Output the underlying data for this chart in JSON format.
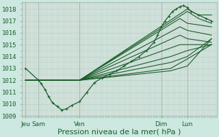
{
  "title": "",
  "xlabel": "Pression niveau de la mer( hPa )",
  "bg_color": "#cce8e0",
  "plot_bg_color": "#cce8e0",
  "grid_major_color": "#b0d4c8",
  "grid_minor_color_v": "#e8c0c0",
  "grid_minor_color_h": "#b0d4c8",
  "line_color": "#1a5c2a",
  "vline_color": "#b0d4c8",
  "font_color": "#1a5c2a",
  "ylim": [
    1009,
    1018.6
  ],
  "xlim": [
    0,
    10.5
  ],
  "yticks": [
    1009,
    1010,
    1011,
    1012,
    1013,
    1014,
    1015,
    1016,
    1017,
    1018
  ],
  "xtick_positions": [
    0.2,
    0.9,
    3.1,
    7.5,
    8.9,
    10.2
  ],
  "xtick_labels": [
    "Jeu",
    "Sam",
    "Ven",
    "Dim",
    "Lun",
    ""
  ],
  "vlines": [
    0.2,
    0.9,
    3.1,
    7.5,
    8.9
  ],
  "tick_fontsize": 6.5,
  "label_fontsize": 8,
  "series": [
    {
      "x": [
        0.2,
        0.9,
        1.05,
        1.25,
        1.45,
        1.65,
        1.9,
        2.15,
        2.4,
        2.7,
        3.1,
        3.5,
        3.9,
        4.3,
        4.7,
        5.1,
        5.5,
        5.9,
        6.3,
        6.7,
        7.1,
        7.3,
        7.5,
        7.7,
        7.9,
        8.1,
        8.3,
        8.5,
        8.7,
        8.9,
        9.1,
        9.5,
        9.9,
        10.2
      ],
      "y": [
        1013.0,
        1012.0,
        1011.7,
        1011.2,
        1010.6,
        1010.1,
        1009.8,
        1009.5,
        1009.6,
        1009.9,
        1010.2,
        1011.0,
        1011.8,
        1012.2,
        1012.5,
        1012.8,
        1013.2,
        1013.6,
        1014.0,
        1014.5,
        1015.2,
        1015.8,
        1016.5,
        1017.0,
        1017.4,
        1017.8,
        1018.0,
        1018.2,
        1018.3,
        1018.1,
        1017.8,
        1017.5,
        1017.2,
        1017.0
      ],
      "marker": true,
      "lw": 0.9
    },
    {
      "x": [
        0.2,
        0.9,
        3.1,
        8.9,
        9.5,
        10.2
      ],
      "y": [
        1012.0,
        1012.0,
        1012.0,
        1018.0,
        1017.5,
        1017.5
      ],
      "marker": false,
      "lw": 0.8
    },
    {
      "x": [
        0.2,
        0.9,
        3.1,
        8.9,
        9.5,
        10.2
      ],
      "y": [
        1012.0,
        1012.0,
        1012.0,
        1017.8,
        1017.2,
        1016.8
      ],
      "marker": false,
      "lw": 0.8
    },
    {
      "x": [
        0.2,
        0.9,
        3.1,
        8.5,
        8.9,
        10.2
      ],
      "y": [
        1012.0,
        1012.0,
        1012.0,
        1017.2,
        1016.8,
        1016.5
      ],
      "marker": false,
      "lw": 0.8
    },
    {
      "x": [
        0.2,
        0.9,
        3.1,
        8.5,
        8.9,
        10.2
      ],
      "y": [
        1012.0,
        1012.0,
        1012.0,
        1016.5,
        1016.2,
        1015.8
      ],
      "marker": false,
      "lw": 0.8
    },
    {
      "x": [
        0.2,
        0.9,
        3.1,
        8.5,
        8.9,
        10.2
      ],
      "y": [
        1012.0,
        1012.0,
        1012.0,
        1015.8,
        1015.5,
        1015.2
      ],
      "marker": false,
      "lw": 0.8
    },
    {
      "x": [
        0.2,
        0.9,
        3.1,
        8.5,
        8.9,
        10.2
      ],
      "y": [
        1012.0,
        1012.0,
        1012.0,
        1015.0,
        1015.0,
        1015.0
      ],
      "marker": false,
      "lw": 0.8
    },
    {
      "x": [
        0.2,
        0.9,
        3.1,
        8.0,
        8.9,
        10.2
      ],
      "y": [
        1012.0,
        1012.0,
        1012.0,
        1014.0,
        1014.5,
        1015.0
      ],
      "marker": false,
      "lw": 0.8
    },
    {
      "x": [
        0.2,
        0.9,
        3.1,
        8.0,
        8.9,
        10.2
      ],
      "y": [
        1012.0,
        1012.0,
        1012.0,
        1013.5,
        1014.0,
        1015.5
      ],
      "marker": false,
      "lw": 0.8
    },
    {
      "x": [
        0.2,
        0.9,
        3.1,
        8.0,
        8.9,
        10.2
      ],
      "y": [
        1012.0,
        1012.0,
        1012.0,
        1013.0,
        1013.8,
        1015.0
      ],
      "marker": false,
      "lw": 0.8
    },
    {
      "x": [
        0.2,
        0.9,
        3.1,
        8.0,
        8.9,
        10.2
      ],
      "y": [
        1012.0,
        1012.0,
        1012.0,
        1012.8,
        1013.2,
        1015.5
      ],
      "marker": false,
      "lw": 0.8
    }
  ]
}
